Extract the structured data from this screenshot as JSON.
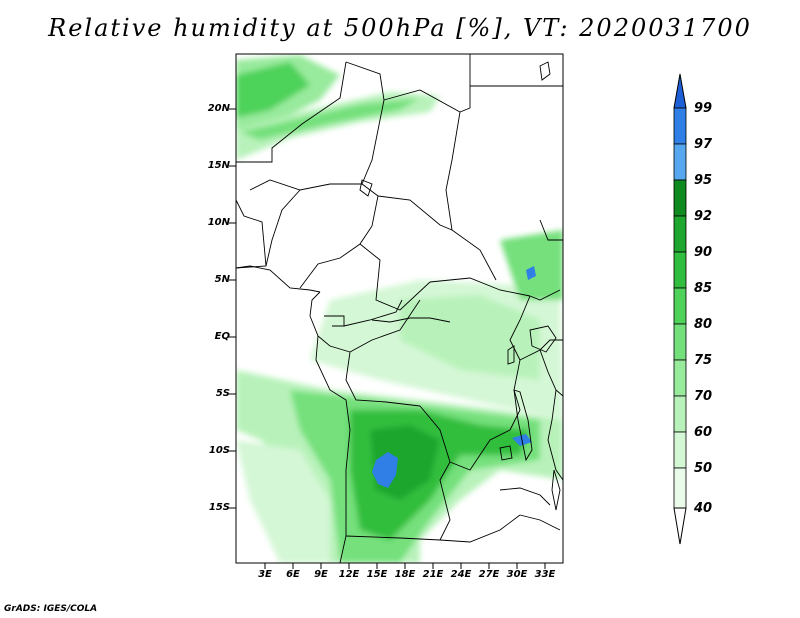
{
  "title": "Relative humidity at 500hPa [%], VT: 2020031700",
  "lat_labels": [
    "20N",
    "15N",
    "10N",
    "5N",
    "EQ",
    "5S",
    "10S",
    "15S"
  ],
  "lon_labels": [
    "3E",
    "6E",
    "9E",
    "12E",
    "15E",
    "18E",
    "21E",
    "24E",
    "27E",
    "30E",
    "33E"
  ],
  "colorbar": {
    "levels": [
      "99",
      "97",
      "95",
      "92",
      "90",
      "85",
      "80",
      "75",
      "70",
      "60",
      "50",
      "40"
    ],
    "colors": [
      "#1c5fd6",
      "#2f7fe6",
      "#56a6f0",
      "#0f8a1e",
      "#1fa62e",
      "#31be3e",
      "#4ed25a",
      "#74e07c",
      "#98ea9c",
      "#b8f2ba",
      "#d4f7d5",
      "#ebfbeb",
      "#ffffff"
    ]
  },
  "credit": "GrADS: IGES/COLA"
}
